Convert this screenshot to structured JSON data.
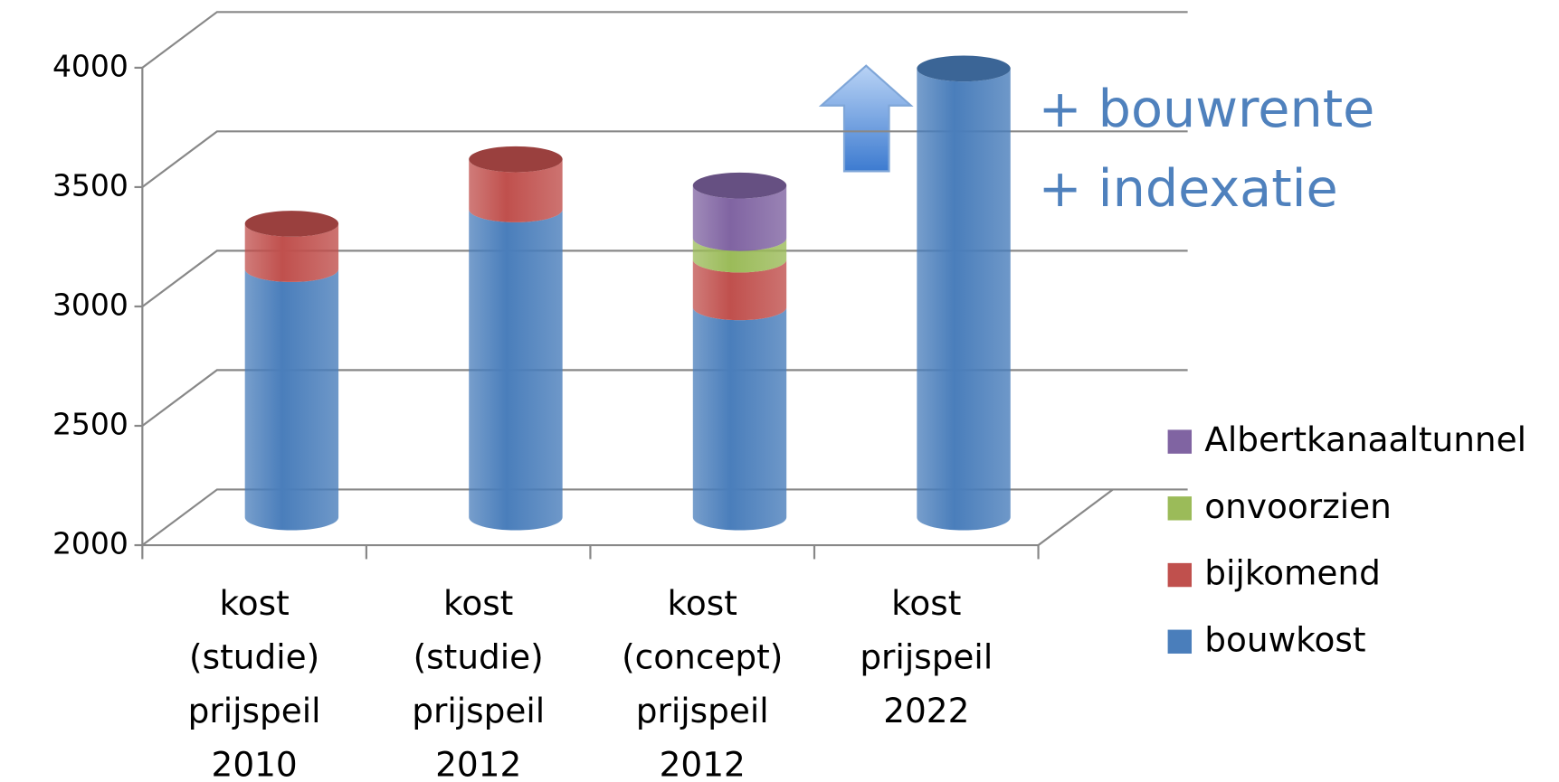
{
  "chart_data": {
    "type": "bar3d_stacked",
    "categories": [
      "kost\n(studie)\nprijspeil\n2010",
      "kost\n(studie)\nprijspeil\n2012",
      "kost\n(concept)\nprijspeil\n2012",
      "kost\nprijspeil\n2022"
    ],
    "series": [
      {
        "name": "bouwkost",
        "color": "#4a7ebb",
        "values": [
          3040,
          3290,
          2880,
          3880
        ]
      },
      {
        "name": "bijkomend",
        "color": "#c0504d",
        "values": [
          190,
          210,
          200,
          null
        ]
      },
      {
        "name": "onvoorzien",
        "color": "#9bbb59",
        "values": [
          null,
          null,
          90,
          null
        ]
      },
      {
        "name": "Albertkanaaltunnel",
        "color": "#8064a2",
        "values": [
          null,
          null,
          220,
          null
        ]
      }
    ],
    "ylim": [
      2000,
      4000
    ],
    "yticks": [
      2000,
      2500,
      3000,
      3500,
      4000
    ],
    "grid": true,
    "annotations": [
      "+ bouwrente",
      "+ indexatie"
    ],
    "annotation_color": "#4f81bd",
    "legend": "right"
  }
}
